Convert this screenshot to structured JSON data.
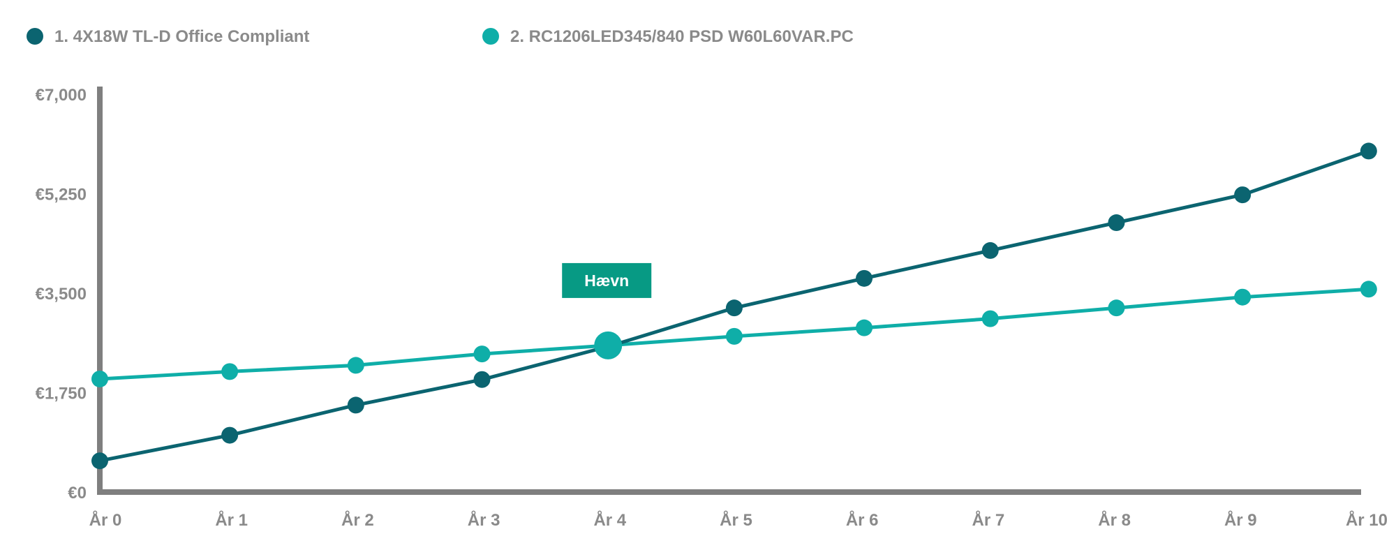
{
  "chart_data": {
    "type": "line",
    "title": "",
    "xlabel": "",
    "ylabel": "",
    "categories": [
      "År 0",
      "År 1",
      "År 2",
      "År 3",
      "År 4",
      "År 5",
      "År 6",
      "År 7",
      "År 8",
      "År 9",
      "År 10"
    ],
    "y_ticks": [
      0,
      1750,
      3500,
      5250,
      7000
    ],
    "y_tick_labels": [
      "€0",
      "€1,750",
      "€3,500",
      "€5,250",
      "€7,000"
    ],
    "ylim": [
      0,
      7000
    ],
    "grid": false,
    "legend_position": "top-left",
    "series": [
      {
        "name": "1. 4X18W TL-D Office Compliant",
        "color": "#0b6470",
        "x": [
          0,
          1.03,
          2.03,
          3.03,
          4.03,
          5.03,
          6.06,
          7.06,
          8.06,
          9.06,
          10.06
        ],
        "values": [
          550,
          1000,
          1530,
          1980,
          2560,
          3240,
          3760,
          4250,
          4740,
          5230,
          6000
        ]
      },
      {
        "name": "2. RC1206LED345/840 PSD W60L60VAR.PC",
        "color": "#0faea8",
        "x": [
          0,
          1.03,
          2.03,
          3.03,
          4.03,
          5.03,
          6.06,
          7.06,
          8.06,
          9.06,
          10.06
        ],
        "values": [
          1990,
          2120,
          2230,
          2430,
          2580,
          2740,
          2890,
          3050,
          3240,
          3430,
          3570
        ]
      }
    ],
    "annotations": [
      {
        "text": "Hævn",
        "x": 4.03,
        "y": 2580,
        "background": "#079a84"
      }
    ]
  }
}
